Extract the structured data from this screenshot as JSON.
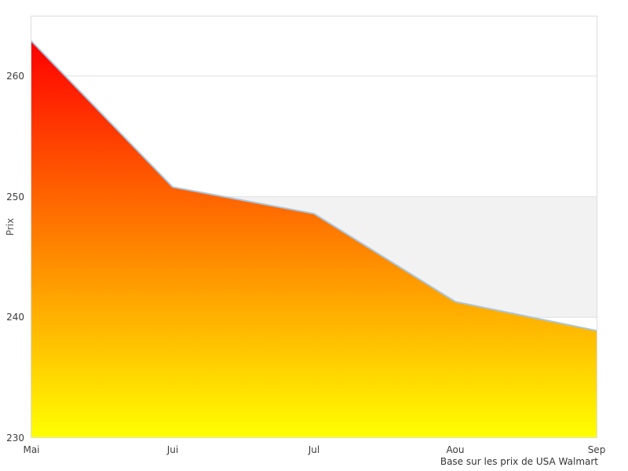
{
  "chart_data": {
    "type": "area",
    "categories": [
      "Mai",
      "Jui",
      "Jul",
      "Aou",
      "Sep"
    ],
    "values": [
      262.9,
      250.8,
      248.6,
      241.3,
      238.9
    ],
    "ylabel": "Prix",
    "yticks": [
      230,
      240,
      250,
      260
    ],
    "ylim": [
      230,
      265
    ],
    "grid": true,
    "legend": false,
    "band": {
      "from": 240,
      "to": 250,
      "color": "#f2f2f2"
    },
    "caption": "Base sur les prix de USA Walmart",
    "colors": {
      "gradient_top": "#ff0000",
      "gradient_bottom": "#ffff00",
      "line": "#a9c6e0",
      "gridline": "#e0e0e0",
      "border": "#dddddd",
      "tick_text": "#3c3c3c",
      "ylabel_text": "#555555",
      "caption_text": "#333333",
      "background": "#ffffff"
    }
  }
}
